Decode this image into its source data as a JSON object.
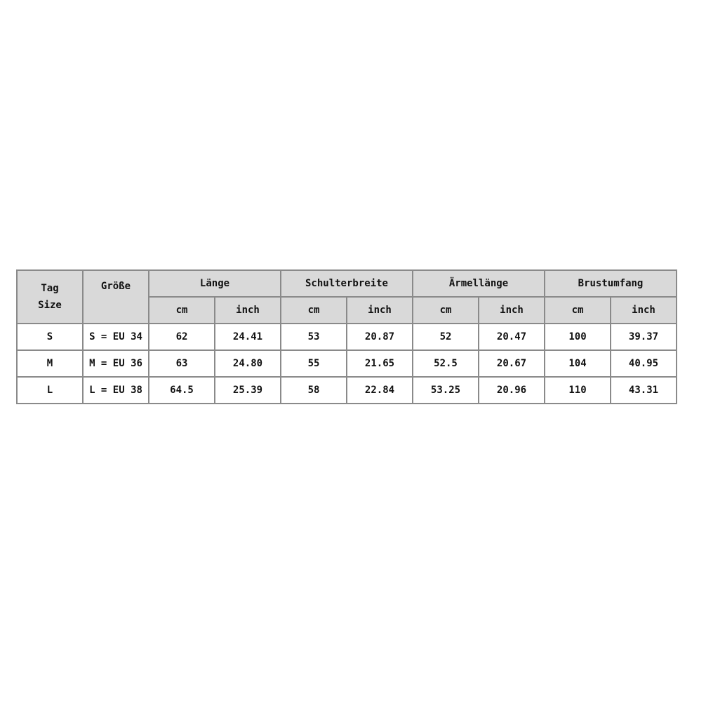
{
  "table": {
    "headers": {
      "tag_size_line1": "Tag",
      "tag_size_line2": "Size",
      "groesse": "Größe",
      "groups": [
        "Länge",
        "Schulterbreite",
        "Ärmellänge",
        "Brustumfang"
      ],
      "units": [
        "cm",
        "inch",
        "cm",
        "inch",
        "cm",
        "inch",
        "cm",
        "inch"
      ]
    },
    "rows": [
      {
        "tag": "S",
        "size": "S = EU 34",
        "values": [
          "62",
          "24.41",
          "53",
          "20.87",
          "52",
          "20.47",
          "100",
          "39.37"
        ]
      },
      {
        "tag": "M",
        "size": "M = EU 36",
        "values": [
          "63",
          "24.80",
          "55",
          "21.65",
          "52.5",
          "20.67",
          "104",
          "40.95"
        ]
      },
      {
        "tag": "L",
        "size": "L = EU 38",
        "values": [
          "64.5",
          "25.39",
          "58",
          "22.84",
          "53.25",
          "20.96",
          "110",
          "43.31"
        ]
      }
    ]
  }
}
